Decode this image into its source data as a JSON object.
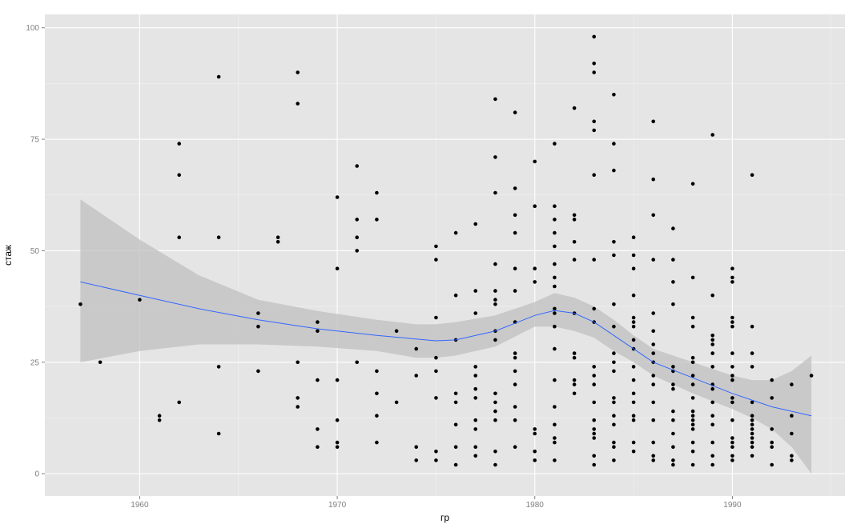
{
  "chart_data": {
    "type": "scatter",
    "xlabel": "гр",
    "ylabel": "стаж",
    "xlim": [
      1955.2,
      1995.7
    ],
    "ylim": [
      -5,
      103
    ],
    "x_ticks": [
      1960,
      1970,
      1980,
      1990
    ],
    "y_ticks": [
      0,
      25,
      50,
      75,
      100
    ],
    "grid": true,
    "panel_background": "#e5e5e5",
    "grid_color": "#ffffff",
    "point_color": "#000000",
    "smooth_color": "#3366ff",
    "ribbon_color": "#bfbfbf",
    "points": [
      [
        1957,
        38
      ],
      [
        1958,
        25
      ],
      [
        1960,
        39
      ],
      [
        1961,
        13
      ],
      [
        1961,
        12
      ],
      [
        1962,
        74
      ],
      [
        1962,
        67
      ],
      [
        1962,
        53
      ],
      [
        1962,
        16
      ],
      [
        1964,
        89
      ],
      [
        1964,
        53
      ],
      [
        1964,
        24
      ],
      [
        1964,
        9
      ],
      [
        1966,
        36
      ],
      [
        1966,
        33
      ],
      [
        1966,
        23
      ],
      [
        1967,
        53
      ],
      [
        1967,
        52
      ],
      [
        1968,
        90
      ],
      [
        1968,
        83
      ],
      [
        1968,
        25
      ],
      [
        1968,
        17
      ],
      [
        1968,
        15
      ],
      [
        1969,
        34
      ],
      [
        1969,
        32
      ],
      [
        1969,
        21
      ],
      [
        1969,
        10
      ],
      [
        1969,
        6
      ],
      [
        1970,
        62
      ],
      [
        1970,
        46
      ],
      [
        1970,
        21
      ],
      [
        1970,
        12
      ],
      [
        1970,
        7
      ],
      [
        1970,
        6
      ],
      [
        1971,
        69
      ],
      [
        1971,
        57
      ],
      [
        1971,
        53
      ],
      [
        1971,
        50
      ],
      [
        1971,
        25
      ],
      [
        1972,
        63
      ],
      [
        1972,
        57
      ],
      [
        1972,
        23
      ],
      [
        1972,
        18
      ],
      [
        1972,
        13
      ],
      [
        1972,
        7
      ],
      [
        1973,
        32
      ],
      [
        1973,
        16
      ],
      [
        1974,
        28
      ],
      [
        1974,
        22
      ],
      [
        1974,
        6
      ],
      [
        1974,
        3
      ],
      [
        1975,
        51
      ],
      [
        1975,
        48
      ],
      [
        1975,
        35
      ],
      [
        1975,
        26
      ],
      [
        1975,
        23
      ],
      [
        1975,
        17
      ],
      [
        1975,
        5
      ],
      [
        1975,
        3
      ],
      [
        1976,
        54
      ],
      [
        1976,
        40
      ],
      [
        1976,
        30
      ],
      [
        1976,
        18
      ],
      [
        1976,
        16
      ],
      [
        1976,
        11
      ],
      [
        1976,
        6
      ],
      [
        1976,
        2
      ],
      [
        1977,
        56
      ],
      [
        1977,
        41
      ],
      [
        1977,
        36
      ],
      [
        1977,
        24
      ],
      [
        1977,
        22
      ],
      [
        1977,
        19
      ],
      [
        1977,
        17
      ],
      [
        1977,
        12
      ],
      [
        1977,
        10
      ],
      [
        1977,
        6
      ],
      [
        1977,
        4
      ],
      [
        1978,
        84
      ],
      [
        1978,
        71
      ],
      [
        1978,
        63
      ],
      [
        1978,
        47
      ],
      [
        1978,
        41
      ],
      [
        1978,
        39
      ],
      [
        1978,
        38
      ],
      [
        1978,
        32
      ],
      [
        1978,
        30
      ],
      [
        1978,
        18
      ],
      [
        1978,
        16
      ],
      [
        1978,
        14
      ],
      [
        1978,
        12
      ],
      [
        1978,
        5
      ],
      [
        1978,
        2
      ],
      [
        1979,
        81
      ],
      [
        1979,
        64
      ],
      [
        1979,
        58
      ],
      [
        1979,
        54
      ],
      [
        1979,
        46
      ],
      [
        1979,
        41
      ],
      [
        1979,
        34
      ],
      [
        1979,
        27
      ],
      [
        1979,
        26
      ],
      [
        1979,
        23
      ],
      [
        1979,
        20
      ],
      [
        1979,
        15
      ],
      [
        1979,
        12
      ],
      [
        1979,
        6
      ],
      [
        1980,
        70
      ],
      [
        1980,
        60
      ],
      [
        1980,
        46
      ],
      [
        1980,
        43
      ],
      [
        1980,
        10
      ],
      [
        1980,
        9
      ],
      [
        1980,
        5
      ],
      [
        1980,
        3
      ],
      [
        1981,
        74
      ],
      [
        1981,
        60
      ],
      [
        1981,
        57
      ],
      [
        1981,
        54
      ],
      [
        1981,
        51
      ],
      [
        1981,
        47
      ],
      [
        1981,
        44
      ],
      [
        1981,
        42
      ],
      [
        1981,
        37
      ],
      [
        1981,
        36
      ],
      [
        1981,
        33
      ],
      [
        1981,
        28
      ],
      [
        1981,
        21
      ],
      [
        1981,
        15
      ],
      [
        1981,
        11
      ],
      [
        1981,
        8
      ],
      [
        1981,
        7
      ],
      [
        1981,
        3
      ],
      [
        1982,
        82
      ],
      [
        1982,
        58
      ],
      [
        1982,
        57
      ],
      [
        1982,
        52
      ],
      [
        1982,
        48
      ],
      [
        1982,
        36
      ],
      [
        1982,
        27
      ],
      [
        1982,
        26
      ],
      [
        1982,
        21
      ],
      [
        1982,
        20
      ],
      [
        1982,
        18
      ],
      [
        1983,
        98
      ],
      [
        1983,
        92
      ],
      [
        1983,
        90
      ],
      [
        1983,
        79
      ],
      [
        1983,
        77
      ],
      [
        1983,
        67
      ],
      [
        1983,
        48
      ],
      [
        1983,
        37
      ],
      [
        1983,
        34
      ],
      [
        1983,
        24
      ],
      [
        1983,
        22
      ],
      [
        1983,
        20
      ],
      [
        1983,
        16
      ],
      [
        1983,
        12
      ],
      [
        1983,
        10
      ],
      [
        1983,
        9
      ],
      [
        1983,
        8
      ],
      [
        1983,
        4
      ],
      [
        1983,
        2
      ],
      [
        1984,
        85
      ],
      [
        1984,
        74
      ],
      [
        1984,
        68
      ],
      [
        1984,
        52
      ],
      [
        1984,
        49
      ],
      [
        1984,
        38
      ],
      [
        1984,
        33
      ],
      [
        1984,
        27
      ],
      [
        1984,
        25
      ],
      [
        1984,
        23
      ],
      [
        1984,
        17
      ],
      [
        1984,
        16
      ],
      [
        1984,
        13
      ],
      [
        1984,
        11
      ],
      [
        1984,
        7
      ],
      [
        1984,
        6
      ],
      [
        1984,
        3
      ],
      [
        1985,
        53
      ],
      [
        1985,
        49
      ],
      [
        1985,
        46
      ],
      [
        1985,
        40
      ],
      [
        1985,
        35
      ],
      [
        1985,
        34
      ],
      [
        1985,
        33
      ],
      [
        1985,
        30
      ],
      [
        1985,
        28
      ],
      [
        1985,
        24
      ],
      [
        1985,
        21
      ],
      [
        1985,
        18
      ],
      [
        1985,
        16
      ],
      [
        1985,
        13
      ],
      [
        1985,
        12
      ],
      [
        1985,
        7
      ],
      [
        1985,
        5
      ],
      [
        1986,
        79
      ],
      [
        1986,
        66
      ],
      [
        1986,
        58
      ],
      [
        1986,
        48
      ],
      [
        1986,
        36
      ],
      [
        1986,
        32
      ],
      [
        1986,
        29
      ],
      [
        1986,
        27
      ],
      [
        1986,
        25
      ],
      [
        1986,
        22
      ],
      [
        1986,
        20
      ],
      [
        1986,
        16
      ],
      [
        1986,
        12
      ],
      [
        1986,
        7
      ],
      [
        1986,
        4
      ],
      [
        1986,
        3
      ],
      [
        1987,
        55
      ],
      [
        1987,
        48
      ],
      [
        1987,
        43
      ],
      [
        1987,
        38
      ],
      [
        1987,
        24
      ],
      [
        1987,
        23
      ],
      [
        1987,
        20
      ],
      [
        1987,
        19
      ],
      [
        1987,
        14
      ],
      [
        1987,
        12
      ],
      [
        1987,
        9
      ],
      [
        1987,
        6
      ],
      [
        1987,
        3
      ],
      [
        1987,
        2
      ],
      [
        1988,
        65
      ],
      [
        1988,
        44
      ],
      [
        1988,
        35
      ],
      [
        1988,
        33
      ],
      [
        1988,
        26
      ],
      [
        1988,
        25
      ],
      [
        1988,
        22
      ],
      [
        1988,
        20
      ],
      [
        1988,
        17
      ],
      [
        1988,
        14
      ],
      [
        1988,
        13
      ],
      [
        1988,
        12
      ],
      [
        1988,
        11
      ],
      [
        1988,
        10
      ],
      [
        1988,
        7
      ],
      [
        1988,
        5
      ],
      [
        1988,
        2
      ],
      [
        1989,
        76
      ],
      [
        1989,
        40
      ],
      [
        1989,
        31
      ],
      [
        1989,
        30
      ],
      [
        1989,
        29
      ],
      [
        1989,
        27
      ],
      [
        1989,
        24
      ],
      [
        1989,
        20
      ],
      [
        1989,
        19
      ],
      [
        1989,
        16
      ],
      [
        1989,
        13
      ],
      [
        1989,
        11
      ],
      [
        1989,
        7
      ],
      [
        1989,
        4
      ],
      [
        1989,
        2
      ],
      [
        1990,
        46
      ],
      [
        1990,
        44
      ],
      [
        1990,
        43
      ],
      [
        1990,
        35
      ],
      [
        1990,
        34
      ],
      [
        1990,
        33
      ],
      [
        1990,
        27
      ],
      [
        1990,
        24
      ],
      [
        1990,
        22
      ],
      [
        1990,
        21
      ],
      [
        1990,
        17
      ],
      [
        1990,
        16
      ],
      [
        1990,
        12
      ],
      [
        1990,
        8
      ],
      [
        1990,
        7
      ],
      [
        1990,
        6
      ],
      [
        1990,
        4
      ],
      [
        1990,
        3
      ],
      [
        1991,
        67
      ],
      [
        1991,
        33
      ],
      [
        1991,
        27
      ],
      [
        1991,
        24
      ],
      [
        1991,
        16
      ],
      [
        1991,
        13
      ],
      [
        1991,
        12
      ],
      [
        1991,
        11
      ],
      [
        1991,
        10
      ],
      [
        1991,
        9
      ],
      [
        1991,
        8
      ],
      [
        1991,
        7
      ],
      [
        1991,
        6
      ],
      [
        1991,
        4
      ],
      [
        1992,
        21
      ],
      [
        1992,
        17
      ],
      [
        1992,
        10
      ],
      [
        1992,
        7
      ],
      [
        1992,
        6
      ],
      [
        1992,
        2
      ],
      [
        1993,
        20
      ],
      [
        1993,
        13
      ],
      [
        1993,
        9
      ],
      [
        1993,
        4
      ],
      [
        1993,
        3
      ],
      [
        1994,
        22
      ]
    ],
    "smooth_line": [
      [
        1957,
        43
      ],
      [
        1960,
        40
      ],
      [
        1963,
        37
      ],
      [
        1966,
        34.5
      ],
      [
        1969,
        32.5
      ],
      [
        1972,
        31
      ],
      [
        1975,
        29.8
      ],
      [
        1976,
        30
      ],
      [
        1978,
        32
      ],
      [
        1980,
        35.5
      ],
      [
        1981,
        36.6
      ],
      [
        1982,
        36
      ],
      [
        1983,
        34
      ],
      [
        1984,
        31
      ],
      [
        1985,
        28
      ],
      [
        1986,
        25
      ],
      [
        1988,
        21.5
      ],
      [
        1990,
        18
      ],
      [
        1992,
        15
      ],
      [
        1994,
        13
      ]
    ],
    "ribbon": [
      [
        1957,
        25,
        61.5
      ],
      [
        1960,
        27.5,
        52.5
      ],
      [
        1963,
        29,
        44.5
      ],
      [
        1966,
        29,
        39
      ],
      [
        1969,
        28.5,
        36.5
      ],
      [
        1972,
        27.5,
        34.5
      ],
      [
        1974,
        26,
        33.5
      ],
      [
        1975,
        26,
        33.5
      ],
      [
        1976,
        26.5,
        34
      ],
      [
        1978,
        28.5,
        35.5
      ],
      [
        1980,
        33,
        38.5
      ],
      [
        1981,
        33,
        40.5
      ],
      [
        1982,
        32,
        39.5
      ],
      [
        1983,
        30.5,
        37.5
      ],
      [
        1984,
        27.5,
        34.5
      ],
      [
        1985,
        25,
        31
      ],
      [
        1986,
        22,
        28
      ],
      [
        1988,
        18,
        25
      ],
      [
        1990,
        14.5,
        22
      ],
      [
        1991,
        12.5,
        21
      ],
      [
        1992,
        10,
        21
      ],
      [
        1993,
        6,
        23
      ],
      [
        1994,
        0,
        26.5
      ]
    ]
  }
}
